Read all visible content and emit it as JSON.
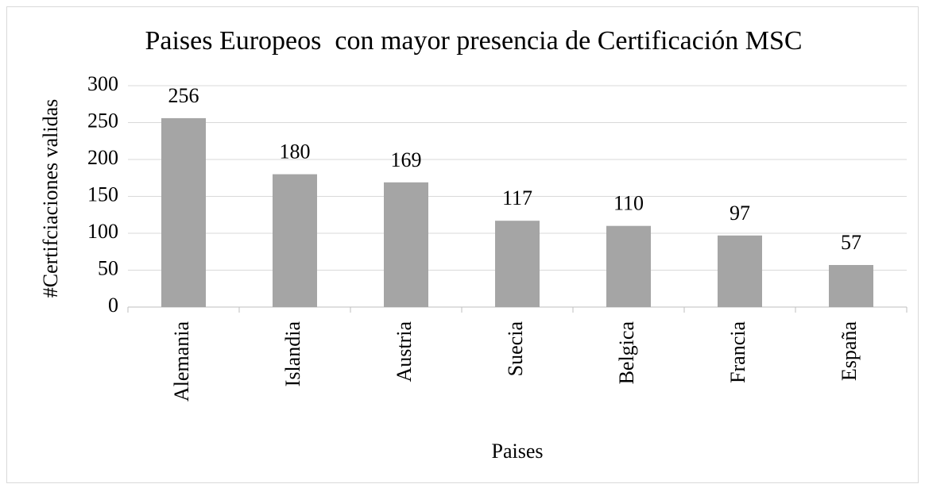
{
  "chart_data": {
    "type": "bar",
    "title": "Paises Europeos  con mayor presencia de Certificación MSC",
    "xlabel": "Paises",
    "ylabel": "#Certifciaciones validas",
    "categories": [
      "Alemania",
      "Islandia",
      "Austria",
      "Suecia",
      "Belgica",
      "Francia",
      "España"
    ],
    "values": [
      256,
      180,
      169,
      117,
      110,
      97,
      57
    ],
    "color": "#a5a5a5",
    "ylim": [
      0,
      300
    ],
    "yticks": [
      0,
      50,
      100,
      150,
      200,
      250,
      300
    ],
    "grid": true
  }
}
